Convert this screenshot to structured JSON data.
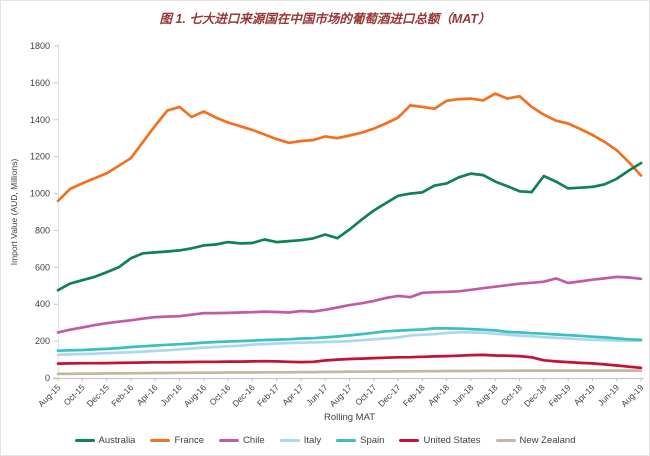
{
  "title": "图 1. 七大进口来源国在中国市场的葡萄酒进口总额（MAT）",
  "chart_data": {
    "type": "line",
    "title": "图 1. 七大进口来源国在中国市场的葡萄酒进口总额（MAT）",
    "xlabel": "Rolling MAT",
    "ylabel": "Import Value (AUD, Millions)",
    "ylim": [
      0,
      1800
    ],
    "ytick_step": 200,
    "grid": false,
    "legend_position": "bottom",
    "x_tick_every": 2,
    "x": [
      "Aug-15",
      "Sep-15",
      "Oct-15",
      "Nov-15",
      "Dec-15",
      "Jan-16",
      "Feb-16",
      "Mar-16",
      "Apr-16",
      "May-16",
      "Jun-16",
      "Jul-16",
      "Aug-16",
      "Sep-16",
      "Oct-16",
      "Nov-16",
      "Dec-16",
      "Jan-17",
      "Feb-17",
      "Mar-17",
      "Apr-17",
      "May-17",
      "Jun-17",
      "Jul-17",
      "Aug-17",
      "Sep-17",
      "Oct-17",
      "Nov-17",
      "Dec-17",
      "Jan-18",
      "Feb-18",
      "Mar-18",
      "Apr-18",
      "May-18",
      "Jun-18",
      "Jul-18",
      "Aug-18",
      "Sep-18",
      "Oct-18",
      "Nov-18",
      "Dec-18",
      "Jan-19",
      "Feb-19",
      "Mar-19",
      "Apr-19",
      "May-19",
      "Jun-19",
      "Jul-19",
      "Aug-19"
    ],
    "series": [
      {
        "name": "Australia",
        "color": "#108152",
        "values": [
          476,
          512,
          530,
          548,
          573,
          600,
          649,
          676,
          681,
          686,
          692,
          703,
          719,
          724,
          737,
          730,
          732,
          751,
          737,
          742,
          747,
          757,
          778,
          758,
          805,
          858,
          908,
          948,
          988,
          1000,
          1007,
          1043,
          1055,
          1088,
          1108,
          1100,
          1065,
          1040,
          1012,
          1008,
          1095,
          1065,
          1028,
          1032,
          1036,
          1050,
          1080,
          1125,
          1165
        ]
      },
      {
        "name": "France",
        "color": "#F3701E",
        "values": [
          960,
          1025,
          1055,
          1082,
          1110,
          1150,
          1192,
          1280,
          1368,
          1450,
          1470,
          1415,
          1445,
          1412,
          1385,
          1365,
          1345,
          1320,
          1295,
          1275,
          1285,
          1290,
          1310,
          1300,
          1315,
          1330,
          1352,
          1380,
          1412,
          1478,
          1470,
          1460,
          1503,
          1512,
          1515,
          1505,
          1542,
          1515,
          1528,
          1470,
          1428,
          1395,
          1380,
          1350,
          1318,
          1280,
          1235,
          1170,
          1098
        ]
      },
      {
        "name": "Chile",
        "color": "#C15CA4",
        "values": [
          247,
          262,
          274,
          286,
          297,
          305,
          313,
          322,
          330,
          333,
          335,
          343,
          352,
          352,
          353,
          355,
          357,
          360,
          358,
          355,
          363,
          360,
          370,
          382,
          395,
          405,
          418,
          434,
          445,
          438,
          462,
          465,
          467,
          470,
          478,
          487,
          495,
          503,
          511,
          516,
          522,
          540,
          515,
          524,
          533,
          540,
          548,
          545,
          538
        ]
      },
      {
        "name": "Italy",
        "color": "#A9D9EC",
        "values": [
          126,
          128,
          130,
          132,
          135,
          137,
          140,
          143,
          147,
          150,
          155,
          160,
          165,
          168,
          172,
          175,
          181,
          184,
          187,
          190,
          192,
          193,
          195,
          197,
          200,
          205,
          210,
          214,
          220,
          231,
          234,
          238,
          244,
          247,
          247,
          245,
          240,
          235,
          230,
          226,
          222,
          218,
          214,
          210,
          207,
          205,
          203,
          202,
          202
        ]
      },
      {
        "name": "Spain",
        "color": "#3CBFC0",
        "values": [
          148,
          150,
          152,
          155,
          158,
          162,
          168,
          172,
          176,
          180,
          183,
          187,
          192,
          195,
          198,
          200,
          203,
          206,
          208,
          210,
          214,
          216,
          220,
          225,
          231,
          238,
          245,
          253,
          257,
          260,
          263,
          269,
          269,
          268,
          265,
          262,
          258,
          250,
          247,
          243,
          240,
          236,
          232,
          228,
          224,
          220,
          215,
          210,
          207
        ]
      },
      {
        "name": "United States",
        "color": "#C51230",
        "values": [
          78,
          79,
          80,
          80,
          81,
          82,
          83,
          84,
          85,
          85,
          86,
          87,
          88,
          88,
          89,
          89,
          90,
          91,
          90,
          88,
          86,
          88,
          95,
          100,
          103,
          105,
          108,
          110,
          112,
          113,
          115,
          117,
          119,
          121,
          124,
          125,
          122,
          121,
          119,
          112,
          96,
          90,
          86,
          82,
          79,
          74,
          68,
          61,
          55
        ]
      },
      {
        "name": "New Zealand",
        "color": "#C4B79E",
        "values": [
          23,
          23,
          24,
          24,
          25,
          25,
          26,
          26,
          27,
          27,
          28,
          28,
          29,
          29,
          30,
          30,
          30,
          31,
          31,
          31,
          32,
          32,
          33,
          33,
          34,
          34,
          35,
          35,
          36,
          36,
          37,
          37,
          38,
          38,
          38,
          39,
          39,
          39,
          40,
          40,
          40,
          40,
          40,
          40,
          40,
          40,
          40,
          40,
          40
        ]
      }
    ]
  },
  "style": {
    "axis_text_color": "#404040",
    "axis_line_color": "#c6c6c6",
    "title_color": "#953735"
  }
}
